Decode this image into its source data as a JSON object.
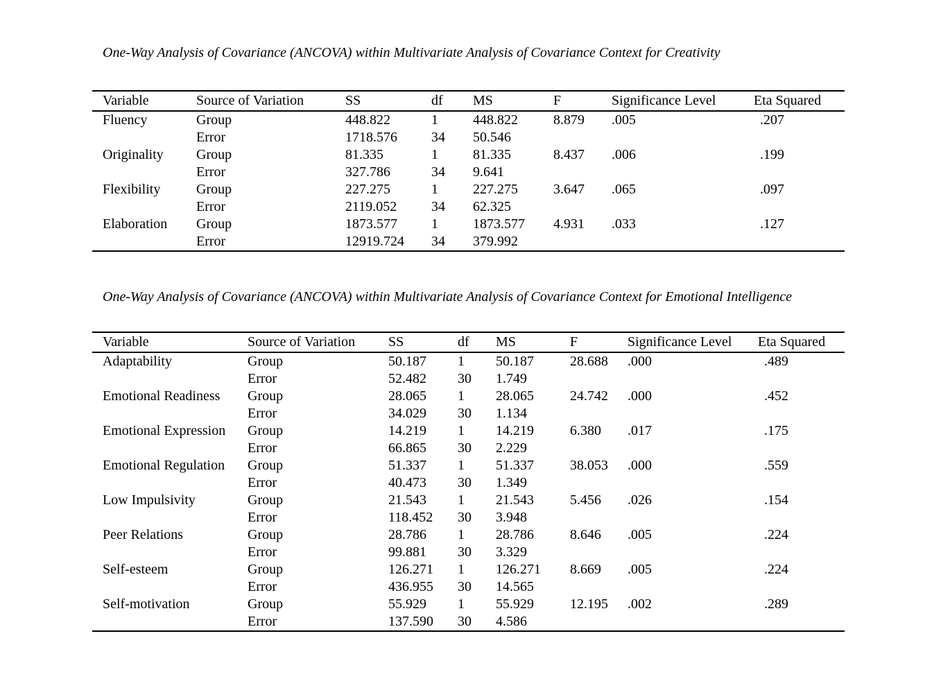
{
  "page": {
    "background_color": "#ffffff",
    "text_color": "#000000"
  },
  "tables": [
    {
      "title": "One-Way Analysis of Covariance (ANCOVA) within Multivariate Analysis of Covariance Context for Creativity",
      "columns": [
        "Variable",
        "Source of Variation",
        "SS",
        "df",
        "MS",
        "F",
        "Significance Level",
        "Eta Squared"
      ],
      "rows": [
        [
          "Fluency",
          "Group",
          "448.822",
          "1",
          "448.822",
          "8.879",
          ".005",
          ".207"
        ],
        [
          "",
          "Error",
          "1718.576",
          "34",
          "50.546",
          "",
          "",
          ""
        ],
        [
          "Originality",
          "Group",
          "81.335",
          "1",
          "81.335",
          "8.437",
          ".006",
          ".199"
        ],
        [
          "",
          "Error",
          "327.786",
          "34",
          "9.641",
          "",
          "",
          ""
        ],
        [
          "Flexibility",
          "Group",
          "227.275",
          "1",
          "227.275",
          "3.647",
          ".065",
          ".097"
        ],
        [
          "",
          "Error",
          "2119.052",
          "34",
          "62.325",
          "",
          "",
          ""
        ],
        [
          "Elaboration",
          "Group",
          "1873.577",
          "1",
          "1873.577",
          "4.931",
          ".033",
          ".127"
        ],
        [
          "",
          "Error",
          "12919.724",
          "34",
          "379.992",
          "",
          "",
          ""
        ]
      ]
    },
    {
      "title": "One-Way Analysis of Covariance (ANCOVA) within Multivariate Analysis of Covariance Context for Emotional Intelligence",
      "columns": [
        "Variable",
        "Source of Variation",
        "SS",
        "df",
        "MS",
        "F",
        "Significance Level",
        "Eta Squared"
      ],
      "rows": [
        [
          "Adaptability",
          "Group",
          "50.187",
          "1",
          "50.187",
          "28.688",
          ".000",
          ".489"
        ],
        [
          "",
          "Error",
          "52.482",
          "30",
          "1.749",
          "",
          "",
          ""
        ],
        [
          "Emotional Readiness",
          "Group",
          "28.065",
          "1",
          "28.065",
          "24.742",
          ".000",
          ".452"
        ],
        [
          "",
          "Error",
          "34.029",
          "30",
          "1.134",
          "",
          "",
          ""
        ],
        [
          "Emotional Expression",
          "Group",
          "14.219",
          "1",
          "14.219",
          "6.380",
          ".017",
          ".175"
        ],
        [
          "",
          "Error",
          "66.865",
          "30",
          "2.229",
          "",
          "",
          ""
        ],
        [
          "Emotional Regulation",
          "Group",
          "51.337",
          "1",
          "51.337",
          "38.053",
          ".000",
          ".559"
        ],
        [
          "",
          "Error",
          "40.473",
          "30",
          "1.349",
          "",
          "",
          ""
        ],
        [
          "Low Impulsivity",
          "Group",
          "21.543",
          "1",
          "21.543",
          "5.456",
          ".026",
          ".154"
        ],
        [
          "",
          "Error",
          "118.452",
          "30",
          "3.948",
          "",
          "",
          ""
        ],
        [
          "Peer Relations",
          "Group",
          "28.786",
          "1",
          "28.786",
          "8.646",
          ".005",
          ".224"
        ],
        [
          "",
          "Error",
          "99.881",
          "30",
          "3.329",
          "",
          "",
          ""
        ],
        [
          "Self-esteem",
          "Group",
          "126.271",
          "1",
          "126.271",
          "8.669",
          ".005",
          ".224"
        ],
        [
          "",
          "Error",
          "436.955",
          "30",
          "14.565",
          "",
          "",
          ""
        ],
        [
          "Self-motivation",
          "Group",
          "55.929",
          "1",
          "55.929",
          "12.195",
          ".002",
          ".289"
        ],
        [
          "",
          "Error",
          "137.590",
          "30",
          "4.586",
          "",
          "",
          ""
        ]
      ]
    }
  ]
}
